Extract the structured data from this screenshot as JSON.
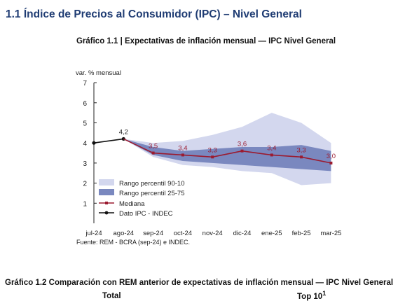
{
  "section_title": "1.1 Índice de Precios al Consumidor (IPC) – Nivel General",
  "chart1_title": "Gráfico 1.1 | Expectativas de inflación mensual — IPC Nivel General",
  "chart2_title": "Gráfico 1.2 Comparación con REM anterior de expectativas de inflación mensual — IPC Nivel General",
  "subheaders": {
    "total": "Total",
    "top10": "Top 10",
    "top10_sup": "1"
  },
  "chart_data": {
    "type": "line",
    "ylabel": "var. % mensual",
    "xlabel": "",
    "ylim": [
      0,
      7
    ],
    "yticks": [
      1,
      2,
      3,
      4,
      5,
      6,
      7
    ],
    "categories": [
      "jul-24",
      "ago-24",
      "sep-24",
      "oct-24",
      "nov-24",
      "dic-24",
      "ene-25",
      "feb-25",
      "mar-25"
    ],
    "series": [
      {
        "name": "Dato IPC - INDEC",
        "values": [
          4.0,
          4.2,
          null,
          null,
          null,
          null,
          null,
          null,
          null
        ],
        "labels": [
          null,
          "4,2",
          null,
          null,
          null,
          null,
          null,
          null,
          null
        ],
        "color": "#111111"
      },
      {
        "name": "Mediana",
        "values": [
          null,
          4.2,
          3.5,
          3.4,
          3.3,
          3.6,
          3.4,
          3.3,
          3.0
        ],
        "labels": [
          null,
          null,
          "3,5",
          "3,4",
          "3,3",
          "3,6",
          "3,4",
          "3,3",
          "3,0"
        ],
        "color": "#9b1b30"
      }
    ],
    "bands": [
      {
        "name": "Rango percentil 90-10",
        "low": [
          null,
          4.2,
          3.3,
          2.9,
          2.8,
          2.6,
          2.5,
          1.9,
          2.0
        ],
        "high": [
          null,
          4.2,
          4.0,
          4.1,
          4.4,
          4.8,
          5.5,
          5.0,
          4.0
        ],
        "color": "#d3d7ee"
      },
      {
        "name": "Rango percentil 25-75",
        "low": [
          null,
          4.2,
          3.4,
          3.1,
          3.0,
          2.9,
          2.8,
          2.7,
          2.6
        ],
        "high": [
          null,
          4.2,
          3.8,
          3.6,
          3.7,
          3.8,
          3.8,
          3.9,
          3.6
        ],
        "color": "#7a88bf"
      }
    ],
    "legend": [
      "Rango percentil 90-10",
      "Rango percentil 25-75",
      "Mediana",
      "Dato IPC - INDEC"
    ],
    "legend_position": "bottom-left inside",
    "grid": false,
    "source": "Fuente: REM - BCRA (sep-24) e INDEC."
  }
}
